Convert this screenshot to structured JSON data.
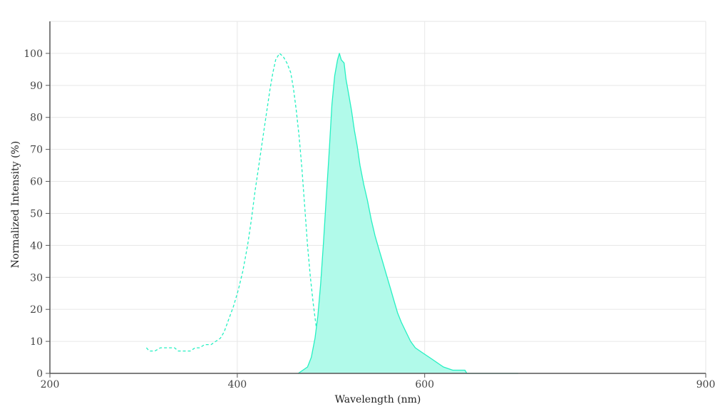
{
  "colors": {
    "series": "#25f0c2",
    "fill": "#b1faea",
    "grid": "#e6e6e6",
    "axis": "#555555"
  },
  "chart_data": {
    "type": "line",
    "title": "",
    "xlabel": "Wavelength (nm)",
    "ylabel": "Normalized Intensity (%)",
    "xlim": [
      200,
      900
    ],
    "ylim": [
      0,
      110
    ],
    "xticks": [
      200,
      400,
      600,
      900
    ],
    "yticks": [
      0,
      10,
      20,
      30,
      40,
      50,
      60,
      70,
      80,
      90,
      100
    ],
    "x_grid_values": [
      200,
      400,
      600,
      900
    ],
    "grid": true,
    "legend": "none",
    "series": [
      {
        "style": "dashed",
        "filled": false,
        "points": [
          [
            303,
            8
          ],
          [
            306,
            7
          ],
          [
            312,
            7
          ],
          [
            318,
            8
          ],
          [
            327,
            8
          ],
          [
            333,
            8
          ],
          [
            337,
            7
          ],
          [
            345,
            7
          ],
          [
            350,
            7
          ],
          [
            355,
            8
          ],
          [
            360,
            8
          ],
          [
            365,
            9
          ],
          [
            372,
            9
          ],
          [
            377,
            10
          ],
          [
            382,
            11
          ],
          [
            386,
            13
          ],
          [
            391,
            17
          ],
          [
            396,
            21
          ],
          [
            401,
            26
          ],
          [
            406,
            32
          ],
          [
            411,
            40
          ],
          [
            415,
            48
          ],
          [
            419,
            57
          ],
          [
            423,
            65
          ],
          [
            427,
            73
          ],
          [
            431,
            81
          ],
          [
            435,
            89
          ],
          [
            438,
            94
          ],
          [
            441,
            98
          ],
          [
            443,
            99
          ],
          [
            445,
            100
          ],
          [
            449,
            99
          ],
          [
            453,
            97
          ],
          [
            457,
            94
          ],
          [
            460,
            89
          ],
          [
            463,
            82
          ],
          [
            466,
            74
          ],
          [
            469,
            64
          ],
          [
            472,
            52
          ],
          [
            475,
            40
          ],
          [
            478,
            30
          ],
          [
            481,
            22
          ],
          [
            484,
            15
          ],
          [
            487,
            9
          ],
          [
            489,
            5
          ],
          [
            490,
            0
          ]
        ]
      },
      {
        "style": "solid",
        "filled": true,
        "points": [
          [
            465,
            0
          ],
          [
            470,
            1
          ],
          [
            475,
            2
          ],
          [
            479,
            5
          ],
          [
            483,
            11
          ],
          [
            486,
            18
          ],
          [
            489,
            28
          ],
          [
            492,
            41
          ],
          [
            495,
            55
          ],
          [
            498,
            69
          ],
          [
            501,
            84
          ],
          [
            504,
            93
          ],
          [
            507,
            98
          ],
          [
            509,
            100
          ],
          [
            511,
            98
          ],
          [
            514,
            97
          ],
          [
            516,
            92
          ],
          [
            519,
            87
          ],
          [
            522,
            82
          ],
          [
            525,
            76
          ],
          [
            528,
            71
          ],
          [
            531,
            65
          ],
          [
            535,
            59
          ],
          [
            539,
            54
          ],
          [
            543,
            48
          ],
          [
            547,
            43
          ],
          [
            551,
            39
          ],
          [
            555,
            35
          ],
          [
            559,
            31
          ],
          [
            563,
            27
          ],
          [
            567,
            23
          ],
          [
            571,
            19
          ],
          [
            575,
            16
          ],
          [
            580,
            13
          ],
          [
            585,
            10
          ],
          [
            590,
            8
          ],
          [
            595,
            7
          ],
          [
            600,
            6
          ],
          [
            605,
            5
          ],
          [
            610,
            4
          ],
          [
            615,
            3
          ],
          [
            620,
            2
          ],
          [
            630,
            1
          ],
          [
            643,
            1
          ],
          [
            645,
            0
          ],
          [
            700,
            0
          ]
        ]
      }
    ]
  }
}
